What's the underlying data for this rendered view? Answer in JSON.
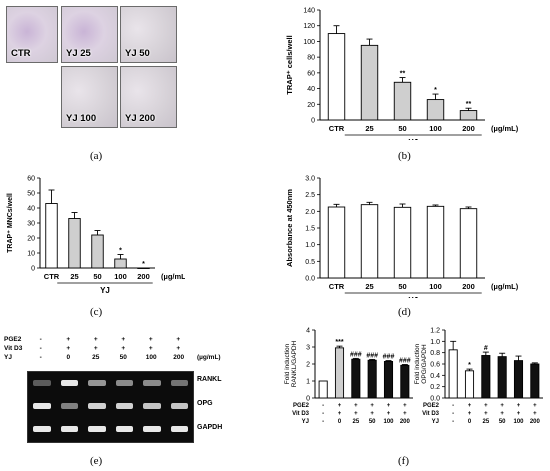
{
  "captions": {
    "a": "(a)",
    "b": "(b)",
    "c": "(c)",
    "d": "(d)",
    "e": "(e)",
    "f": "(f)"
  },
  "micrographs": [
    {
      "label": "CTR",
      "stained": true
    },
    {
      "label": "YJ 25",
      "stained": true
    },
    {
      "label": "YJ 50",
      "stained": false
    },
    {
      "label": "YJ 100",
      "stained": false
    },
    {
      "label": "YJ 200",
      "stained": false
    }
  ],
  "colors": {
    "white": "#ffffff",
    "gray": "#cfcfcf",
    "black": "#111111",
    "band": "#f4f4f4",
    "gel": "#0c0c0c"
  },
  "gel": {
    "header": {
      "rows": [
        {
          "label": "PGE2",
          "values": [
            "-",
            "+",
            "+",
            "+",
            "+",
            "+"
          ]
        },
        {
          "label": "Vit D3",
          "values": [
            "-",
            "+",
            "+",
            "+",
            "+",
            "+"
          ]
        },
        {
          "label": "YJ",
          "values": [
            "-",
            "0",
            "25",
            "50",
            "100",
            "200"
          ]
        }
      ],
      "unit": "(µg/mL)"
    },
    "bands": [
      {
        "name": "RANKL",
        "lane_intensity": [
          0.35,
          0.95,
          0.6,
          0.55,
          0.55,
          0.45
        ]
      },
      {
        "name": "OPG",
        "lane_intensity": [
          0.95,
          0.5,
          0.85,
          0.85,
          0.8,
          0.8
        ]
      },
      {
        "name": "GAPDH",
        "lane_intensity": [
          0.95,
          0.95,
          0.95,
          0.95,
          0.95,
          0.95
        ]
      }
    ]
  },
  "chart_data": [
    {
      "id": "b",
      "type": "bar",
      "categories": [
        "CTR",
        "25",
        "50",
        "100",
        "200"
      ],
      "values": [
        110,
        95,
        48,
        26,
        12
      ],
      "errors": [
        10,
        8,
        6,
        7,
        3
      ],
      "fills": [
        "white",
        "gray",
        "gray",
        "gray",
        "gray"
      ],
      "annotations": [
        "",
        "",
        "**",
        "*",
        "**"
      ],
      "ylabel": "TRAP⁺ cells/well",
      "ylim": [
        0,
        140
      ],
      "yticks": [
        0,
        20,
        40,
        60,
        80,
        100,
        120,
        140
      ],
      "group_label": "YJ",
      "unit": "(µg/mL)"
    },
    {
      "id": "c",
      "type": "bar",
      "categories": [
        "CTR",
        "25",
        "50",
        "100",
        "200"
      ],
      "values": [
        43,
        33,
        22,
        6,
        0
      ],
      "errors": [
        9,
        4,
        3,
        3,
        0
      ],
      "fills": [
        "white",
        "gray",
        "gray",
        "gray",
        "gray"
      ],
      "annotations": [
        "",
        "",
        "",
        "*",
        "*"
      ],
      "ylabel": "TRAP⁺ MNCs/well",
      "ylim": [
        0,
        60
      ],
      "yticks": [
        0,
        10,
        20,
        30,
        40,
        50,
        60
      ],
      "group_label": "YJ",
      "unit": "(µg/mL)"
    },
    {
      "id": "d",
      "type": "bar",
      "categories": [
        "CTR",
        "25",
        "50",
        "100",
        "200"
      ],
      "values": [
        2.13,
        2.2,
        2.12,
        2.15,
        2.08
      ],
      "errors": [
        0.08,
        0.07,
        0.1,
        0.04,
        0.05
      ],
      "fills": [
        "white",
        "white",
        "white",
        "white",
        "white"
      ],
      "annotations": [
        "",
        "",
        "",
        "",
        ""
      ],
      "ylabel": "Absorbance at 450nm",
      "ylim": [
        0,
        3.0
      ],
      "yticks": [
        0.0,
        0.5,
        1.0,
        1.5,
        2.0,
        2.5,
        3.0
      ],
      "group_label": "YJ",
      "unit": "(µg/mL)"
    },
    {
      "id": "f1",
      "type": "bar",
      "categories": [
        "-",
        "0",
        "25",
        "50",
        "100",
        "200"
      ],
      "values": [
        1.0,
        2.95,
        2.28,
        2.22,
        2.15,
        1.92
      ],
      "errors": [
        0,
        0.1,
        0.05,
        0.05,
        0.05,
        0.05
      ],
      "fills": [
        "white",
        "gray",
        "black",
        "black",
        "black",
        "black"
      ],
      "annotations": [
        "",
        "***",
        "###",
        "###",
        "###",
        "###"
      ],
      "ylabel_lines": [
        "Fold induction",
        "RANKL/GAPDH"
      ],
      "ylim": [
        0,
        4
      ],
      "yticks": [
        0,
        1,
        2,
        3,
        4
      ],
      "row_labels": [
        "PGE2",
        "Vit D3",
        "YJ"
      ],
      "rows": [
        [
          "-",
          "+",
          "+",
          "+",
          "+",
          "+"
        ],
        [
          "-",
          "+",
          "+",
          "+",
          "+",
          "+"
        ],
        [
          "-",
          "0",
          "25",
          "50",
          "100",
          "200"
        ]
      ]
    },
    {
      "id": "f2",
      "type": "bar",
      "categories": [
        "-",
        "0",
        "25",
        "50",
        "100",
        "200"
      ],
      "values": [
        0.85,
        0.48,
        0.75,
        0.73,
        0.66,
        0.6
      ],
      "errors": [
        0.15,
        0.03,
        0.06,
        0.06,
        0.08,
        0.02
      ],
      "fills": [
        "white",
        "white",
        "black",
        "black",
        "black",
        "black"
      ],
      "annotations": [
        "",
        "*",
        "#",
        "",
        "",
        ""
      ],
      "ylabel_lines": [
        "Fold induction",
        "OPG/GAPDH"
      ],
      "ylim": [
        0,
        1.2
      ],
      "yticks": [
        0.0,
        0.2,
        0.4,
        0.6,
        0.8,
        1.0,
        1.2
      ],
      "row_labels": [
        "PGE2",
        "Vit D3",
        "YJ"
      ],
      "rows": [
        [
          "-",
          "+",
          "+",
          "+",
          "+",
          "+"
        ],
        [
          "-",
          "+",
          "+",
          "+",
          "+",
          "+"
        ],
        [
          "-",
          "0",
          "25",
          "50",
          "100",
          "200"
        ]
      ]
    }
  ]
}
